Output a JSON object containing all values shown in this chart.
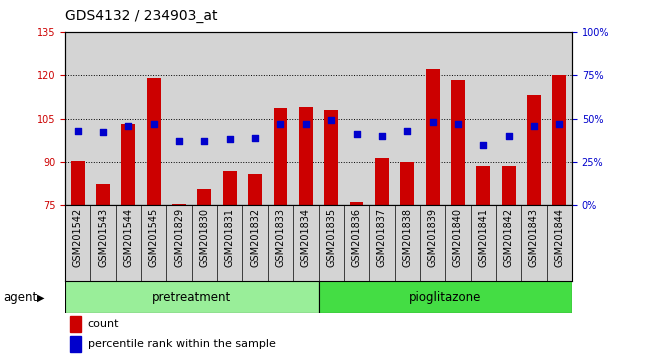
{
  "title": "GDS4132 / 234903_at",
  "samples": [
    "GSM201542",
    "GSM201543",
    "GSM201544",
    "GSM201545",
    "GSM201829",
    "GSM201830",
    "GSM201831",
    "GSM201832",
    "GSM201833",
    "GSM201834",
    "GSM201835",
    "GSM201836",
    "GSM201837",
    "GSM201838",
    "GSM201839",
    "GSM201840",
    "GSM201841",
    "GSM201842",
    "GSM201843",
    "GSM201844"
  ],
  "counts": [
    90.5,
    82.5,
    103.0,
    119.0,
    75.5,
    80.5,
    87.0,
    86.0,
    108.5,
    109.0,
    108.0,
    76.0,
    91.5,
    90.0,
    122.0,
    118.5,
    88.5,
    88.5,
    113.0,
    120.0
  ],
  "percentiles": [
    43,
    42,
    46,
    47,
    37,
    37,
    38,
    39,
    47,
    47,
    49,
    41,
    40,
    43,
    48,
    47,
    35,
    40,
    46,
    47
  ],
  "group1_label": "pretreatment",
  "group2_label": "pioglitazone",
  "group1_count": 10,
  "group2_count": 10,
  "ylim_left": [
    75,
    135
  ],
  "ylim_right": [
    0,
    100
  ],
  "yticks_left": [
    75,
    90,
    105,
    120,
    135
  ],
  "yticks_right": [
    0,
    25,
    50,
    75,
    100
  ],
  "ytick_labels_right": [
    "0%",
    "25%",
    "50%",
    "75%",
    "100%"
  ],
  "bar_color": "#cc0000",
  "dot_color": "#0000cc",
  "bar_bottom": 75,
  "agent_label": "agent",
  "legend_count_label": "count",
  "legend_pct_label": "percentile rank within the sample",
  "bg_color": "#d4d4d4",
  "group1_color": "#99ee99",
  "group2_color": "#44dd44",
  "title_fontsize": 10,
  "tick_fontsize": 7,
  "axis_color_left": "#cc0000",
  "axis_color_right": "#0000cc",
  "grid_color": "black",
  "white_bg": "#ffffff"
}
